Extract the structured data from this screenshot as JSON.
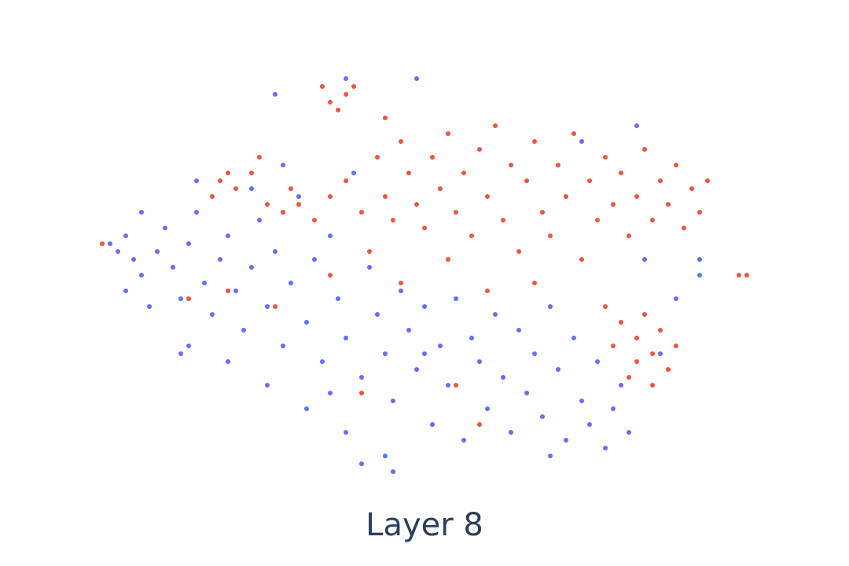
{
  "chart_data": {
    "type": "scatter",
    "title": "Layer 8",
    "xlim": [
      -54,
      54
    ],
    "ylim": [
      -36,
      36
    ],
    "series": [
      {
        "color": "#636efa",
        "x": [
          -40,
          -39,
          -38,
          -37,
          -36,
          -38,
          -35,
          -34,
          -33,
          -32,
          -31,
          -30,
          -29,
          -28,
          -27,
          -26,
          -25,
          -24,
          -23,
          -22,
          -21,
          -20,
          -19,
          -18,
          -17,
          -16,
          -15,
          -14,
          -13,
          -12,
          -11,
          -10,
          -9,
          -8,
          -7,
          -6,
          -5,
          -4,
          -3,
          -2,
          -1,
          0,
          1,
          2,
          3,
          4,
          5,
          6,
          7,
          8,
          9,
          10,
          11,
          12,
          13,
          14,
          15,
          16,
          17,
          18,
          19,
          20,
          21,
          22,
          23,
          24,
          25,
          26,
          -30,
          -25,
          -20,
          -15,
          -10,
          -5,
          -8,
          -4,
          -18,
          -22,
          -29,
          -36,
          -19,
          -10,
          -1,
          20,
          27,
          35,
          35,
          28,
          32,
          -31,
          -12,
          0,
          16,
          30
        ],
        "values": [
          5,
          4,
          6,
          3,
          1,
          -1,
          -3,
          4,
          7,
          2,
          -2,
          5,
          9,
          0,
          -4,
          3,
          6,
          -1,
          -6,
          2,
          8,
          -3,
          4,
          -8,
          0,
          11,
          -5,
          3,
          -10,
          6,
          -2,
          -7,
          14,
          -12,
          2,
          -4,
          -9,
          -15,
          -1,
          -6,
          -11,
          -3,
          -18,
          -8,
          -13,
          -2,
          -20,
          -7,
          -10,
          -16,
          -4,
          -12,
          -19,
          -6,
          -14,
          -9,
          -17,
          -3,
          -11,
          -20,
          -7,
          -15,
          -18,
          -10,
          -21,
          -16,
          -13,
          -19,
          -8,
          -10,
          -13,
          -16,
          -19,
          -22,
          -23,
          -24,
          15,
          12,
          13,
          9,
          24,
          26,
          26,
          18,
          20,
          1,
          3,
          3,
          -2,
          -9,
          -14,
          -9,
          -22,
          -9
        ]
      },
      {
        "color": "#ef553b",
        "x": [
          -13,
          -12,
          -10,
          -11,
          -9,
          -26,
          -25,
          -24,
          -27,
          -22,
          -20,
          -18,
          -17,
          -16,
          -14,
          -12,
          -10,
          -8,
          -6,
          -5,
          -4,
          -3,
          -2,
          -1,
          0,
          1,
          2,
          3,
          4,
          5,
          6,
          7,
          8,
          9,
          10,
          11,
          12,
          13,
          14,
          15,
          16,
          17,
          18,
          19,
          20,
          21,
          22,
          23,
          24,
          25,
          26,
          27,
          28,
          29,
          30,
          31,
          32,
          33,
          34,
          35,
          36,
          23,
          25,
          27,
          28,
          29,
          30,
          31,
          32,
          29,
          27,
          24,
          26,
          40,
          41,
          -41,
          -30,
          -25,
          -19,
          -12,
          -7,
          -3,
          3,
          8,
          14,
          -8,
          4,
          7,
          -21,
          -5
        ],
        "values": [
          25,
          23,
          24,
          22,
          25,
          13,
          14,
          12,
          11,
          14,
          10,
          9,
          12,
          10,
          8,
          11,
          13,
          9,
          16,
          11,
          8,
          18,
          14,
          10,
          7,
          16,
          12,
          19,
          9,
          14,
          6,
          17,
          11,
          20,
          8,
          15,
          4,
          13,
          18,
          9,
          6,
          15,
          11,
          19,
          3,
          13,
          8,
          16,
          10,
          14,
          6,
          11,
          17,
          8,
          13,
          10,
          15,
          7,
          12,
          9,
          13,
          -3,
          -5,
          -7,
          -4,
          -9,
          -6,
          -11,
          -8,
          -13,
          -10,
          -8,
          -12,
          1,
          1,
          5,
          -2,
          -1,
          -3,
          1,
          4,
          0,
          3,
          -1,
          0,
          -14,
          -13,
          -18,
          16,
          21
        ]
      }
    ]
  }
}
